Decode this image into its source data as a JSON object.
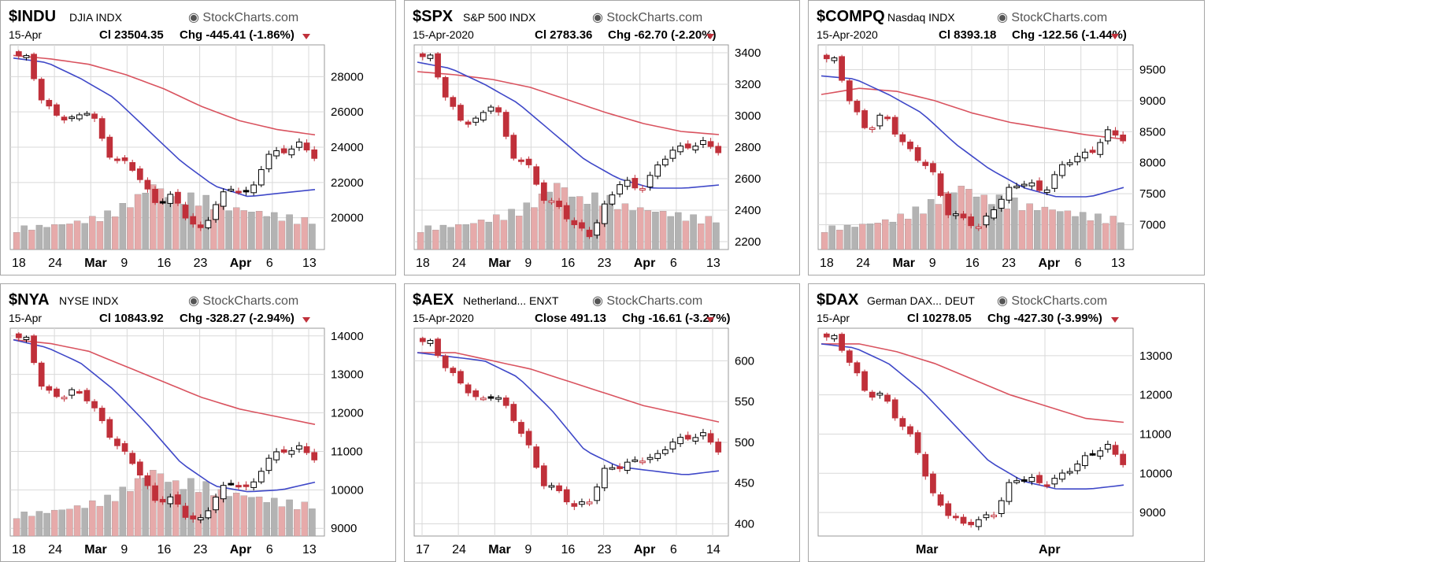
{
  "brand": "StockCharts.com",
  "colors": {
    "down": "#c0303a",
    "up": "#000000",
    "ma_fast": "#3f48c8",
    "ma_slow": "#d9535f",
    "vol_down": "#e6aaaa",
    "vol_up": "#b3b3b3",
    "grid": "#d9d9d9"
  },
  "chart_data": [
    {
      "type": "candlestick",
      "symbol": "$INDU",
      "name": "DJIA",
      "exchange": "INDX",
      "date": "15-Apr",
      "close_label": "Cl",
      "close": "23504.35",
      "chg_label": "Chg",
      "chg": "-445.41 (-1.86%)",
      "yticks": [
        20000,
        22000,
        24000,
        26000,
        28000
      ],
      "ylim": [
        18200,
        29800
      ],
      "xticks": [
        "18",
        "24",
        "Mar",
        "9",
        "16",
        "23",
        "Apr",
        "6",
        "13"
      ],
      "ohlc_anchor": [
        29300,
        29050,
        26500,
        25700,
        25600,
        26200,
        23600,
        23200,
        22400,
        20800,
        21300,
        20000,
        19200,
        21200,
        21700,
        21300,
        23600,
        23700,
        24200,
        23500
      ],
      "ma_fast_anchor": [
        29050,
        28800,
        27900,
        26800,
        25000,
        23200,
        21800,
        21200,
        21400,
        21600
      ],
      "ma_slow_anchor": [
        29200,
        29000,
        28700,
        28100,
        27300,
        26300,
        25500,
        25000,
        24700
      ],
      "volume_profile": [
        0.3,
        0.32,
        0.35,
        0.4,
        0.5,
        0.65,
        0.9,
        0.7,
        0.75,
        0.6,
        0.55,
        0.5,
        0.45,
        0.4
      ]
    },
    {
      "type": "candlestick",
      "symbol": "$SPX",
      "name": "S&P 500",
      "exchange": "INDX",
      "date": "15-Apr-2020",
      "close_label": "Cl",
      "close": "2783.36",
      "chg_label": "Chg",
      "chg": "-62.70 (-2.20%)",
      "yticks": [
        2200,
        2400,
        2600,
        2800,
        3000,
        3200,
        3400
      ],
      "ylim": [
        2150,
        3450
      ],
      "xticks": [
        "18",
        "24",
        "Mar",
        "9",
        "16",
        "23",
        "Apr",
        "6",
        "13"
      ],
      "ohlc_anchor": [
        3380,
        3370,
        3100,
        2950,
        2980,
        3100,
        2750,
        2700,
        2480,
        2420,
        2300,
        2240,
        2450,
        2600,
        2520,
        2650,
        2780,
        2800,
        2830,
        2780
      ],
      "ma_fast_anchor": [
        3340,
        3300,
        3200,
        3080,
        2900,
        2720,
        2600,
        2540,
        2540,
        2560
      ],
      "ma_slow_anchor": [
        3280,
        3260,
        3230,
        3180,
        3100,
        3020,
        2950,
        2900,
        2880
      ],
      "volume_profile": [
        0.3,
        0.32,
        0.35,
        0.42,
        0.52,
        0.65,
        0.92,
        0.7,
        0.75,
        0.6,
        0.55,
        0.5,
        0.45,
        0.42
      ]
    },
    {
      "type": "candlestick",
      "symbol": "$COMPQ",
      "name": "Nasdaq",
      "exchange": "INDX",
      "date": "15-Apr-2020",
      "close_label": "Cl",
      "close": "8393.18",
      "chg_label": "Chg",
      "chg": "-122.56 (-1.44%)",
      "yticks": [
        7000,
        7500,
        8000,
        8500,
        9000,
        9500
      ],
      "ylim": [
        6600,
        9900
      ],
      "xticks": [
        "18",
        "24",
        "Mar",
        "9",
        "16",
        "23",
        "Apr",
        "6",
        "13"
      ],
      "ohlc_anchor": [
        9700,
        9650,
        8950,
        8500,
        8800,
        8400,
        8100,
        7900,
        7200,
        7100,
        6950,
        7300,
        7600,
        7700,
        7500,
        7900,
        8100,
        8150,
        8500,
        8390
      ],
      "ma_fast_anchor": [
        9400,
        9350,
        9100,
        8800,
        8300,
        7900,
        7600,
        7450,
        7450,
        7600
      ],
      "ma_slow_anchor": [
        9100,
        9200,
        9150,
        9000,
        8800,
        8650,
        8550,
        8450,
        8380
      ],
      "volume_profile": [
        0.3,
        0.32,
        0.36,
        0.42,
        0.55,
        0.7,
        0.88,
        0.72,
        0.7,
        0.6,
        0.56,
        0.5,
        0.46,
        0.42
      ]
    },
    {
      "type": "candlestick",
      "symbol": "$NYA",
      "name": "NYSE",
      "exchange": "INDX",
      "date": "15-Apr",
      "close_label": "Cl",
      "close": "10843.92",
      "chg_label": "Chg",
      "chg": "-328.27 (-2.94%)",
      "yticks": [
        9000,
        10000,
        11000,
        12000,
        13000,
        14000
      ],
      "ylim": [
        8800,
        14200
      ],
      "xticks": [
        "18",
        "24",
        "Mar",
        "9",
        "16",
        "23",
        "Apr",
        "6",
        "13"
      ],
      "ohlc_anchor": [
        14000,
        13900,
        12600,
        12400,
        12600,
        12300,
        11500,
        11000,
        10500,
        9700,
        9800,
        9300,
        9200,
        10000,
        10200,
        10000,
        10800,
        11000,
        11100,
        10840
      ],
      "ma_fast_anchor": [
        13900,
        13700,
        13300,
        12600,
        11700,
        10700,
        10100,
        9950,
        10000,
        10200
      ],
      "ma_slow_anchor": [
        13900,
        13800,
        13600,
        13200,
        12800,
        12400,
        12100,
        11900,
        11700
      ],
      "volume_profile": [
        0.3,
        0.32,
        0.36,
        0.42,
        0.52,
        0.68,
        0.9,
        0.72,
        0.74,
        0.6,
        0.56,
        0.5,
        0.46,
        0.42
      ]
    },
    {
      "type": "candlestick",
      "symbol": "$AEX",
      "name": "Netherland...",
      "exchange": "ENXT",
      "date": "15-Apr-2020",
      "close_label": "Close",
      "close": "491.13",
      "chg_label": "Chg",
      "chg": "-16.61 (-3.27%)",
      "yticks": [
        400,
        450,
        500,
        550,
        600
      ],
      "ylim": [
        385,
        640
      ],
      "xticks": [
        "17",
        "24",
        "Mar",
        "9",
        "16",
        "23",
        "Apr",
        "6",
        "14"
      ],
      "ohlc_anchor": [
        625,
        622,
        590,
        570,
        550,
        560,
        535,
        500,
        450,
        440,
        420,
        430,
        470,
        470,
        480,
        480,
        500,
        505,
        510,
        491
      ],
      "ma_fast_anchor": [
        610,
        605,
        600,
        580,
        540,
        490,
        470,
        465,
        460,
        465
      ],
      "ma_slow_anchor": [
        610,
        610,
        600,
        590,
        575,
        560,
        545,
        535,
        525
      ],
      "volume_profile": []
    },
    {
      "type": "candlestick",
      "symbol": "$DAX",
      "name": "German DAX...",
      "exchange": "DEUT",
      "date": "15-Apr",
      "close_label": "Cl",
      "close": "10278.05",
      "chg_label": "Chg",
      "chg": "-427.30 (-3.99%)",
      "yticks": [
        9000,
        10000,
        11000,
        12000,
        13000
      ],
      "ylim": [
        8400,
        13700
      ],
      "xticks": [
        "Mar",
        "Apr"
      ],
      "ohlc_anchor": [
        13500,
        13450,
        12800,
        12000,
        12000,
        11300,
        10800,
        9500,
        9000,
        8700,
        8800,
        9000,
        9800,
        9900,
        9700,
        9900,
        10200,
        10500,
        10700,
        10280
      ],
      "ma_fast_anchor": [
        13300,
        13200,
        12800,
        12100,
        11200,
        10300,
        9800,
        9600,
        9600,
        9700
      ],
      "ma_slow_anchor": [
        13300,
        13300,
        13100,
        12800,
        12400,
        12000,
        11700,
        11400,
        11300
      ],
      "volume_profile": []
    }
  ]
}
